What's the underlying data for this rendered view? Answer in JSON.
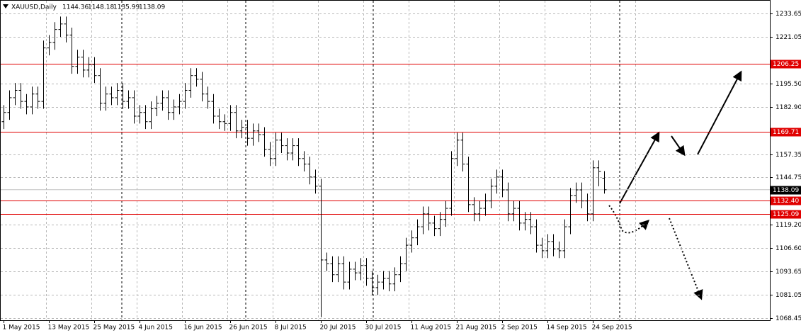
{
  "chart_data": {
    "type": "ohlc",
    "title": "XAUUSD,Daily",
    "categories": [
      "1 May 2015",
      null,
      null,
      null,
      null,
      null,
      null,
      null,
      "13 May 2015",
      null,
      null,
      null,
      null,
      null,
      null,
      null,
      "25 May 2015",
      null,
      null,
      null,
      null,
      null,
      null,
      null,
      "4 Jun 2015",
      null,
      null,
      null,
      null,
      null,
      null,
      null,
      "16 Jun 2015",
      null,
      null,
      null,
      null,
      null,
      null,
      null,
      "26 Jun 2015",
      null,
      null,
      null,
      null,
      null,
      null,
      null,
      "8 Jul 2015",
      null,
      null,
      null,
      null,
      null,
      null,
      null,
      "20 Jul 2015",
      null,
      null,
      null,
      null,
      null,
      null,
      null,
      "30 Jul 2015",
      null,
      null,
      null,
      null,
      null,
      null,
      null,
      "11 Aug 2015",
      null,
      null,
      null,
      null,
      null,
      null,
      null,
      "21 Aug 2015",
      null,
      null,
      null,
      null,
      null,
      null,
      null,
      "2 Sep 2015",
      null,
      null,
      null,
      null,
      null,
      null,
      null,
      "14 Sep 2015",
      null,
      null,
      null,
      null,
      null,
      null,
      null,
      "24 Sep 2015",
      null,
      null
    ],
    "open": [
      1175,
      1180,
      1188,
      1192,
      1186,
      1183,
      1190,
      1186,
      1215,
      1218,
      1225,
      1228,
      1222,
      1205,
      1210,
      1203,
      1206,
      1200,
      1185,
      1190,
      1188,
      1192,
      1186,
      1188,
      1178,
      1180,
      1175,
      1182,
      1185,
      1188,
      1180,
      1183,
      1186,
      1192,
      1200,
      1198,
      1190,
      1186,
      1178,
      1175,
      1174,
      1180,
      1170,
      1172,
      1166,
      1170,
      1168,
      1160,
      1155,
      1165,
      1162,
      1158,
      1162,
      1155,
      1152,
      1145,
      1140,
      1100,
      1098,
      1092,
      1098,
      1088,
      1095,
      1093,
      1097,
      1090,
      1085,
      1088,
      1090,
      1087,
      1092,
      1098,
      1108,
      1112,
      1118,
      1125,
      1120,
      1117,
      1122,
      1128,
      1155,
      1165,
      1152,
      1130,
      1125,
      1128,
      1132,
      1140,
      1145,
      1138,
      1125,
      1128,
      1120,
      1122,
      1118,
      1108,
      1105,
      1110,
      1106,
      1105,
      1118,
      1135,
      1138,
      1132,
      1125,
      1150,
      1144.36
    ],
    "high": [
      1184,
      1192,
      1196,
      1196,
      1190,
      1194,
      1194,
      1219,
      1222,
      1229,
      1232,
      1232,
      1226,
      1214,
      1214,
      1210,
      1210,
      1204,
      1194,
      1194,
      1196,
      1196,
      1192,
      1192,
      1184,
      1184,
      1186,
      1189,
      1192,
      1192,
      1187,
      1190,
      1196,
      1204,
      1204,
      1202,
      1194,
      1190,
      1182,
      1179,
      1184,
      1184,
      1176,
      1176,
      1174,
      1174,
      1172,
      1164,
      1169,
      1169,
      1166,
      1166,
      1166,
      1159,
      1156,
      1149,
      1144,
      1104,
      1102,
      1102,
      1102,
      1099,
      1099,
      1101,
      1101,
      1094,
      1092,
      1094,
      1094,
      1096,
      1102,
      1112,
      1116,
      1122,
      1129,
      1129,
      1124,
      1126,
      1132,
      1159,
      1169,
      1169,
      1156,
      1134,
      1132,
      1136,
      1144,
      1149,
      1149,
      1142,
      1132,
      1132,
      1126,
      1126,
      1122,
      1112,
      1114,
      1114,
      1110,
      1122,
      1139,
      1142,
      1142,
      1136,
      1154,
      1154,
      1148.18
    ],
    "low": [
      1171,
      1176,
      1184,
      1182,
      1179,
      1179,
      1182,
      1182,
      1211,
      1214,
      1221,
      1218,
      1201,
      1201,
      1199,
      1199,
      1196,
      1181,
      1181,
      1184,
      1184,
      1182,
      1182,
      1174,
      1174,
      1171,
      1171,
      1178,
      1181,
      1176,
      1176,
      1179,
      1182,
      1188,
      1194,
      1186,
      1182,
      1174,
      1171,
      1170,
      1170,
      1166,
      1166,
      1162,
      1162,
      1164,
      1156,
      1151,
      1151,
      1158,
      1154,
      1154,
      1151,
      1148,
      1141,
      1136,
      1069,
      1094,
      1088,
      1088,
      1084,
      1084,
      1089,
      1089,
      1086,
      1081,
      1081,
      1084,
      1083,
      1083,
      1088,
      1094,
      1104,
      1108,
      1114,
      1116,
      1113,
      1113,
      1118,
      1124,
      1151,
      1148,
      1126,
      1121,
      1121,
      1124,
      1128,
      1136,
      1134,
      1121,
      1121,
      1116,
      1116,
      1114,
      1104,
      1101,
      1101,
      1102,
      1101,
      1101,
      1114,
      1131,
      1128,
      1121,
      1121,
      1140,
      1135.99
    ],
    "close": [
      1180,
      1188,
      1192,
      1186,
      1183,
      1190,
      1186,
      1215,
      1218,
      1225,
      1228,
      1222,
      1205,
      1210,
      1203,
      1206,
      1200,
      1185,
      1190,
      1188,
      1192,
      1186,
      1188,
      1178,
      1180,
      1175,
      1182,
      1185,
      1188,
      1180,
      1183,
      1186,
      1192,
      1200,
      1198,
      1190,
      1186,
      1178,
      1175,
      1174,
      1180,
      1170,
      1172,
      1166,
      1170,
      1168,
      1160,
      1155,
      1165,
      1162,
      1158,
      1162,
      1155,
      1152,
      1145,
      1140,
      1100,
      1098,
      1092,
      1098,
      1088,
      1095,
      1093,
      1097,
      1090,
      1085,
      1088,
      1090,
      1087,
      1092,
      1098,
      1108,
      1112,
      1118,
      1125,
      1120,
      1117,
      1122,
      1128,
      1155,
      1165,
      1152,
      1130,
      1125,
      1128,
      1132,
      1140,
      1145,
      1138,
      1125,
      1128,
      1120,
      1122,
      1118,
      1108,
      1105,
      1110,
      1106,
      1105,
      1118,
      1135,
      1138,
      1132,
      1125,
      1150,
      1148,
      1138.09
    ],
    "color": "#000000",
    "ylim": [
      1067.3,
      1241.0
    ],
    "yticks": [
      1233.65,
      1221.05,
      {
        "value": 1195.5,
        "label": "1195.50"
      },
      {
        "value": 1182.9,
        "label": "1182.90"
      },
      1157.35,
      1144.75,
      {
        "value": 1119.2,
        "label": "1119.20"
      },
      {
        "value": 1106.6,
        "label": "1106.60"
      },
      1093.65,
      1081.05,
      1068.45
    ],
    "levels": [
      {
        "value": 1206.25,
        "label": "1206.25"
      },
      {
        "value": 1169.71,
        "label": "1169.71"
      },
      {
        "value": 1132.4,
        "label": "1132.40"
      },
      {
        "value": 1125.09,
        "label": "1125.09"
      }
    ],
    "level_color": "#e00000",
    "grid": true
  }
}
